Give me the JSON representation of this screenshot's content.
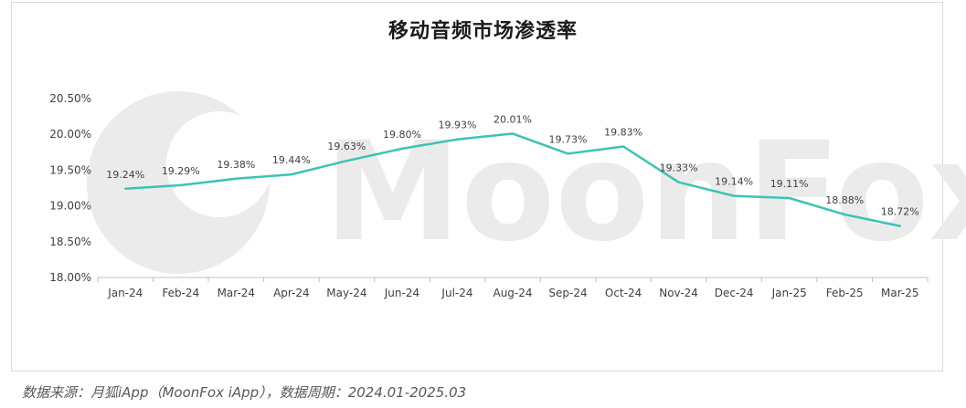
{
  "header": {
    "title": "移动音频市场渗透率"
  },
  "watermark": {
    "text": "MoonFox"
  },
  "footer": {
    "source": "数据来源：月狐iApp（MoonFox iApp），数据周期：2024.01-2025.03"
  },
  "colors": {
    "line": "#3cc3b4",
    "axis_text": "#404040",
    "axis_line": "#bfbfbf",
    "watermark": "#ebebeb"
  },
  "chart_data": {
    "type": "line",
    "title": "移动音频市场渗透率",
    "categories": [
      "Jan-24",
      "Feb-24",
      "Mar-24",
      "Apr-24",
      "May-24",
      "Jun-24",
      "Jul-24",
      "Aug-24",
      "Sep-24",
      "Oct-24",
      "Nov-24",
      "Dec-24",
      "Jan-25",
      "Feb-25",
      "Mar-25"
    ],
    "series": [
      {
        "values": [
          19.24,
          19.29,
          19.38,
          19.44,
          19.63,
          19.8,
          19.93,
          20.01,
          19.73,
          19.83,
          19.33,
          19.14,
          19.11,
          18.88,
          18.72
        ],
        "labels": [
          "19.24%",
          "19.29%",
          "19.38%",
          "19.44%",
          "19.63%",
          "19.80%",
          "19.93%",
          "20.01%",
          "19.73%",
          "19.83%",
          "19.33%",
          "19.14%",
          "19.11%",
          "18.88%",
          "18.72%"
        ]
      }
    ],
    "yticks": [
      "18.00%",
      "18.50%",
      "19.00%",
      "19.50%",
      "20.00%",
      "20.50%"
    ],
    "ylim": [
      18.0,
      20.5
    ],
    "grid": false,
    "legend": "none"
  }
}
